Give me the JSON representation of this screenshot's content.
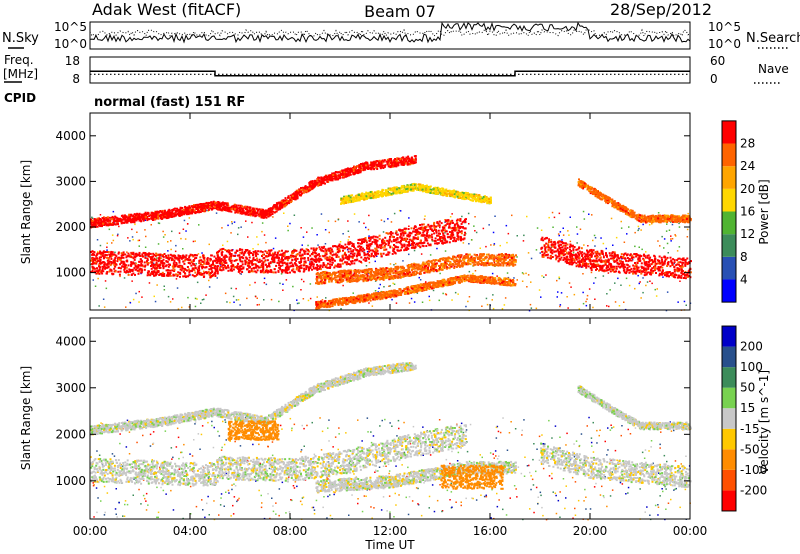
{
  "header": {
    "left": "Adak West (fitACF)",
    "center": "Beam 07",
    "right": "28/Sep/2012"
  },
  "nsky_panel": {
    "left_label": "N.Sky",
    "right_label": "N.Search",
    "left_ticks": [
      "10^5",
      "10^0"
    ],
    "right_ticks": [
      "10^5",
      "10^0"
    ]
  },
  "freq_panel": {
    "left_label_1": "Freq.",
    "left_label_2": "[MHz]",
    "right_label": "Nave",
    "left_ticks": [
      "18",
      "8"
    ],
    "right_ticks": [
      "60",
      "0"
    ],
    "freq_steps": [
      {
        "from": 0,
        "to": 5,
        "value": 12.5
      },
      {
        "from": 5,
        "to": 17,
        "value": 10.8
      },
      {
        "from": 17,
        "to": 24,
        "value": 12.5
      }
    ],
    "nave_level": 20
  },
  "cpid": {
    "label": "CPID",
    "mode": "normal (fast) 151 RF"
  },
  "colors": {
    "power": [
      "#0000ff",
      "#2850b4",
      "#3c8c5a",
      "#50b432",
      "#ffd700",
      "#ffa500",
      "#ff6400",
      "#ff0000"
    ],
    "velocity": [
      "#ff0000",
      "#ff5000",
      "#ff8c00",
      "#ffc800",
      "#c8c8c8",
      "#78d250",
      "#3c8c5a",
      "#28508c",
      "#0000c8"
    ]
  },
  "chart_data": [
    {
      "type": "heatmap",
      "name": "power",
      "xlabel": "",
      "ylabel": "Slant Range [km]",
      "xlim": [
        0,
        24
      ],
      "ylim": [
        180,
        4500
      ],
      "yticks": [
        1000,
        2000,
        3000,
        4000
      ],
      "colorbar": {
        "label": "Power [dB]",
        "ticks": [
          "4",
          "8",
          "12",
          "16",
          "20",
          "24",
          "28"
        ]
      },
      "features": [
        {
          "kind": "band",
          "points": [
            [
              0,
              1250
            ],
            [
              5,
              1150
            ],
            [
              5.1,
              1300
            ],
            [
              8,
              1250
            ],
            [
              10,
              1400
            ],
            [
              13,
              1800
            ],
            [
              15,
              2000
            ]
          ],
          "width": 500,
          "level": 7
        },
        {
          "kind": "band",
          "points": [
            [
              0,
              2100
            ],
            [
              3,
              2300
            ],
            [
              5,
              2500
            ],
            [
              7,
              2300
            ],
            [
              9,
              3000
            ],
            [
              11,
              3350
            ],
            [
              13,
              3500
            ]
          ],
          "width": 180,
          "level": 7
        },
        {
          "kind": "band",
          "points": [
            [
              9,
              900
            ],
            [
              12,
              1000
            ],
            [
              15,
              1300
            ],
            [
              17,
              1300
            ]
          ],
          "width": 260,
          "level": 6
        },
        {
          "kind": "band",
          "points": [
            [
              9,
              300
            ],
            [
              12,
              550
            ],
            [
              15,
              900
            ],
            [
              17,
              800
            ]
          ],
          "width": 150,
          "level": 6
        },
        {
          "kind": "band",
          "points": [
            [
              10,
              2600
            ],
            [
              13,
              2900
            ],
            [
              15,
              2700
            ],
            [
              16,
              2600
            ]
          ],
          "width": 150,
          "level": 4
        },
        {
          "kind": "band",
          "points": [
            [
              18,
              1600
            ],
            [
              20,
              1300
            ],
            [
              22,
              1200
            ],
            [
              24,
              1100
            ]
          ],
          "width": 450,
          "level": 7
        },
        {
          "kind": "band",
          "points": [
            [
              19.5,
              3000
            ],
            [
              21,
              2500
            ],
            [
              22,
              2200
            ],
            [
              24,
              2200
            ]
          ],
          "width": 150,
          "level": 6
        }
      ]
    },
    {
      "type": "heatmap",
      "name": "velocity",
      "xlabel": "Time UT",
      "ylabel": "Slant Range [km]",
      "xlim": [
        0,
        24
      ],
      "ylim": [
        180,
        4500
      ],
      "xticks": [
        "00:00",
        "04:00",
        "08:00",
        "12:00",
        "16:00",
        "20:00",
        "00:00"
      ],
      "yticks": [
        1000,
        2000,
        3000,
        4000
      ],
      "colorbar": {
        "label": "Velocity [m s^-1]",
        "ticks": [
          "-200",
          "-100",
          "-50",
          "-15",
          "15",
          "50",
          "100",
          "200"
        ]
      },
      "features": [
        {
          "kind": "band",
          "points": [
            [
              0,
              1250
            ],
            [
              5,
              1150
            ],
            [
              5.1,
              1300
            ],
            [
              8,
              1250
            ],
            [
              10,
              1400
            ],
            [
              13,
              1800
            ],
            [
              15,
              2000
            ]
          ],
          "width": 500,
          "level": 4
        },
        {
          "kind": "band",
          "points": [
            [
              0,
              2100
            ],
            [
              3,
              2300
            ],
            [
              5,
              2500
            ],
            [
              7,
              2300
            ],
            [
              9,
              3000
            ],
            [
              11,
              3350
            ],
            [
              13,
              3500
            ]
          ],
          "width": 180,
          "level": 4
        },
        {
          "kind": "band",
          "points": [
            [
              9,
              900
            ],
            [
              12,
              1000
            ],
            [
              15,
              1300
            ],
            [
              17,
              1300
            ]
          ],
          "width": 260,
          "level": 4
        },
        {
          "kind": "blob",
          "x": [
            14,
            16.5
          ],
          "y": [
            850,
            1350
          ],
          "level": 2
        },
        {
          "kind": "blob",
          "x": [
            5.5,
            7.5
          ],
          "y": [
            1900,
            2300
          ],
          "level": 2
        },
        {
          "kind": "band",
          "points": [
            [
              18,
              1600
            ],
            [
              20,
              1300
            ],
            [
              22,
              1200
            ],
            [
              24,
              1100
            ]
          ],
          "width": 450,
          "level": 4
        },
        {
          "kind": "band",
          "points": [
            [
              19.5,
              3000
            ],
            [
              21,
              2500
            ],
            [
              22,
              2200
            ],
            [
              24,
              2200
            ]
          ],
          "width": 150,
          "level": 4
        }
      ]
    }
  ]
}
